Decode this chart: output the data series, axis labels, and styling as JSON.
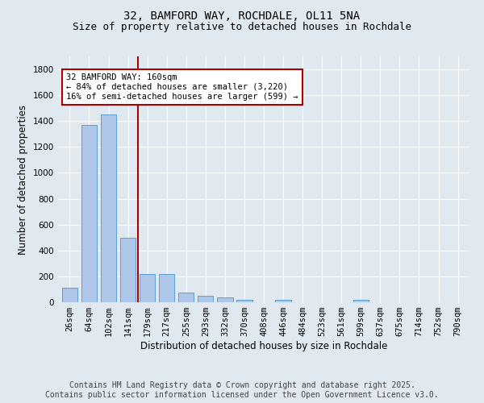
{
  "title_line1": "32, BAMFORD WAY, ROCHDALE, OL11 5NA",
  "title_line2": "Size of property relative to detached houses in Rochdale",
  "xlabel": "Distribution of detached houses by size in Rochdale",
  "ylabel": "Number of detached properties",
  "categories": [
    "26sqm",
    "64sqm",
    "102sqm",
    "141sqm",
    "179sqm",
    "217sqm",
    "255sqm",
    "293sqm",
    "332sqm",
    "370sqm",
    "408sqm",
    "446sqm",
    "484sqm",
    "523sqm",
    "561sqm",
    "599sqm",
    "637sqm",
    "675sqm",
    "714sqm",
    "752sqm",
    "790sqm"
  ],
  "values": [
    110,
    1370,
    1450,
    500,
    220,
    220,
    75,
    50,
    35,
    20,
    0,
    20,
    0,
    0,
    0,
    20,
    0,
    0,
    0,
    0,
    0
  ],
  "bar_color": "#aec6e8",
  "bar_edge_color": "#5a9fd4",
  "vline_color": "#aa0000",
  "annotation_text": "32 BAMFORD WAY: 160sqm\n← 84% of detached houses are smaller (3,220)\n16% of semi-detached houses are larger (599) →",
  "annotation_box_color": "#ffffff",
  "annotation_box_edge_color": "#aa0000",
  "ylim": [
    0,
    1900
  ],
  "yticks": [
    0,
    200,
    400,
    600,
    800,
    1000,
    1200,
    1400,
    1600,
    1800
  ],
  "footer_line1": "Contains HM Land Registry data © Crown copyright and database right 2025.",
  "footer_line2": "Contains public sector information licensed under the Open Government Licence v3.0.",
  "background_color": "#e0e8f0",
  "grid_color": "#ffffff",
  "title_fontsize": 10,
  "subtitle_fontsize": 9,
  "axis_label_fontsize": 8.5,
  "tick_fontsize": 7.5,
  "annotation_fontsize": 7.5,
  "footer_fontsize": 7
}
